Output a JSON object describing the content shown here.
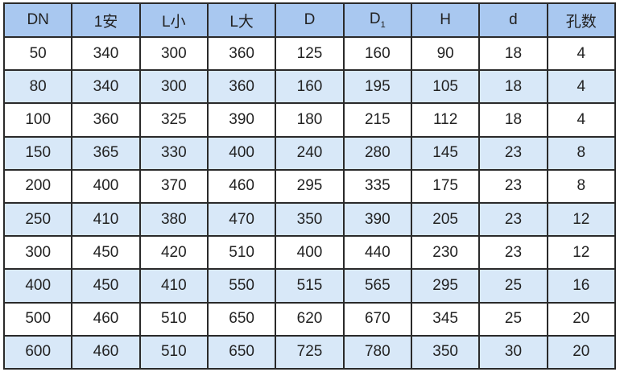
{
  "table": {
    "header_bg": "#a9c8f0",
    "alt_row_bg": "#d8e8f8",
    "headers": [
      "DN",
      "1安",
      "L小",
      "L大",
      "D",
      "D1",
      "H",
      "d",
      "孔数"
    ],
    "rows": [
      [
        "50",
        "340",
        "300",
        "360",
        "125",
        "160",
        "90",
        "18",
        "4"
      ],
      [
        "80",
        "340",
        "300",
        "360",
        "160",
        "195",
        "105",
        "18",
        "4"
      ],
      [
        "100",
        "360",
        "325",
        "390",
        "180",
        "215",
        "112",
        "18",
        "4"
      ],
      [
        "150",
        "365",
        "330",
        "400",
        "240",
        "280",
        "145",
        "23",
        "8"
      ],
      [
        "200",
        "400",
        "370",
        "460",
        "295",
        "335",
        "175",
        "23",
        "8"
      ],
      [
        "250",
        "410",
        "380",
        "470",
        "350",
        "390",
        "205",
        "23",
        "12"
      ],
      [
        "300",
        "450",
        "420",
        "510",
        "400",
        "440",
        "230",
        "23",
        "12"
      ],
      [
        "400",
        "450",
        "410",
        "550",
        "515",
        "565",
        "295",
        "25",
        "16"
      ],
      [
        "500",
        "460",
        "510",
        "650",
        "620",
        "670",
        "345",
        "25",
        "20"
      ],
      [
        "600",
        "460",
        "510",
        "650",
        "725",
        "780",
        "350",
        "30",
        "20"
      ]
    ]
  }
}
